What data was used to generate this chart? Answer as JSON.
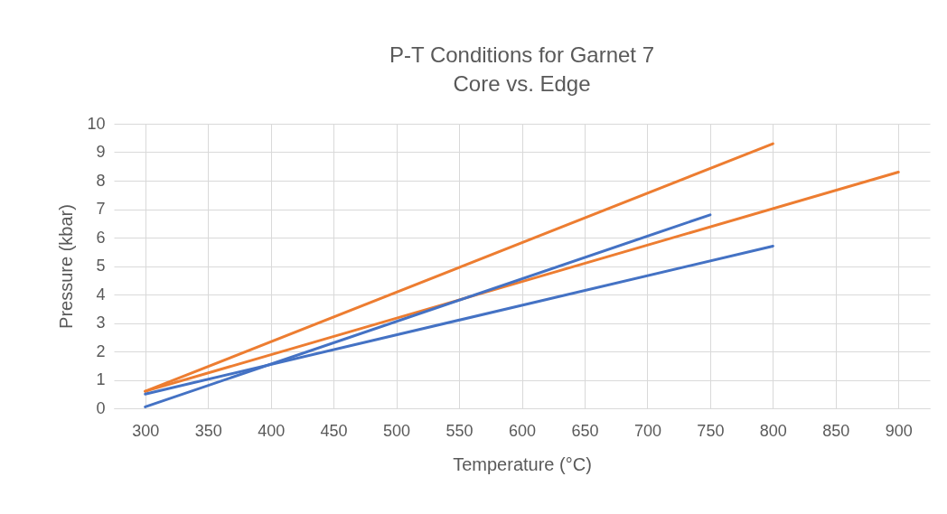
{
  "chart_data": {
    "type": "line",
    "title": "P-T Conditions for Garnet 7",
    "subtitle": "Core vs. Edge",
    "xlabel": "Temperature (°C)",
    "ylabel": "Pressure (kbar)",
    "xlim": [
      275,
      925
    ],
    "xticks": [
      300,
      350,
      400,
      450,
      500,
      550,
      600,
      650,
      700,
      750,
      800,
      850,
      900
    ],
    "ylim": [
      0,
      10
    ],
    "yticks": [
      0,
      1,
      2,
      3,
      4,
      5,
      6,
      7,
      8,
      9,
      10
    ],
    "grid": true,
    "marker": "none",
    "line_style": "solid",
    "series": [
      {
        "color": "#ed7d31",
        "x": [
          300,
          800
        ],
        "values": [
          0.6,
          9.3
        ]
      },
      {
        "color": "#ed7d31",
        "x": [
          300,
          900
        ],
        "values": [
          0.6,
          8.3
        ]
      },
      {
        "color": "#4472c4",
        "x": [
          300,
          750
        ],
        "values": [
          0.05,
          6.8
        ]
      },
      {
        "color": "#4472c4",
        "x": [
          300,
          800
        ],
        "values": [
          0.5,
          5.7
        ]
      }
    ]
  }
}
